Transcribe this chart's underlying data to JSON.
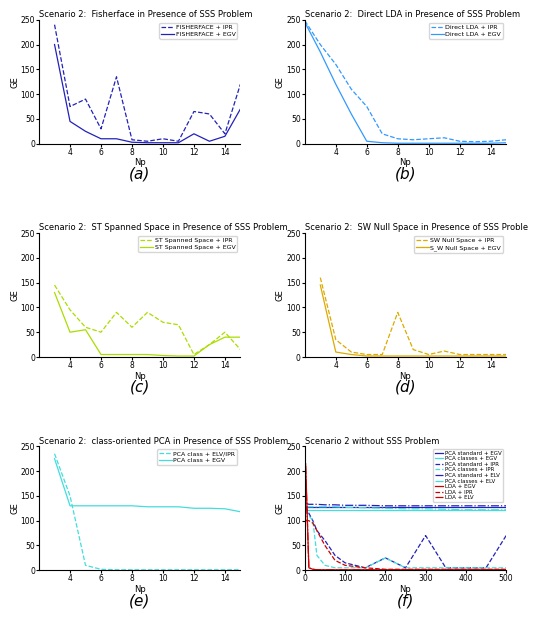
{
  "panel_a": {
    "title": "Scenario 2:  Fisherface in Presence of SSS Problem",
    "label1": "FISHERFACE + IPR",
    "label2": "FISHERFACE + EGV",
    "color": "#2222bb",
    "x": [
      3,
      4,
      5,
      6,
      7,
      8,
      9,
      10,
      11,
      12,
      13,
      14,
      15
    ],
    "y_ipr": [
      240,
      75,
      90,
      30,
      135,
      8,
      5,
      10,
      5,
      65,
      60,
      20,
      120
    ],
    "y_egv": [
      200,
      45,
      25,
      10,
      10,
      3,
      2,
      2,
      2,
      20,
      5,
      15,
      70
    ]
  },
  "panel_b": {
    "title": "Scenario 2:  Direct LDA in Presence of SSS Problem",
    "label1": "Direct LDA + IPR",
    "label2": "Direct LDA + EGV",
    "color": "#3399ff",
    "x": [
      2,
      3,
      4,
      5,
      6,
      7,
      8,
      9,
      10,
      11,
      12,
      13,
      14,
      15
    ],
    "y_ipr": [
      248,
      200,
      160,
      110,
      75,
      20,
      10,
      8,
      10,
      12,
      5,
      4,
      5,
      8
    ],
    "y_egv": [
      245,
      185,
      120,
      60,
      5,
      2,
      1,
      1,
      1,
      1,
      1,
      1,
      1,
      2
    ]
  },
  "panel_c": {
    "title": "Scenario 2:  ST Spanned Space in Presence of SSS Problem",
    "label1": "ST Spanned Space + IPR",
    "label2": "ST Spanned Space + EGV",
    "color": "#aadd00",
    "x": [
      3,
      4,
      5,
      6,
      7,
      8,
      9,
      10,
      11,
      12,
      13,
      14,
      15
    ],
    "y_ipr": [
      145,
      95,
      60,
      50,
      90,
      60,
      90,
      70,
      65,
      5,
      25,
      50,
      15
    ],
    "y_egv": [
      130,
      50,
      55,
      5,
      5,
      5,
      5,
      3,
      2,
      2,
      25,
      40,
      40
    ]
  },
  "panel_d": {
    "title": "Scenario 2:  SW Null Space in Presence of SSS Proble",
    "label1": "SW Null Space + IPR",
    "label2": "S_W Null Space + EGV",
    "color": "#ddaa00",
    "x": [
      3,
      4,
      5,
      6,
      7,
      8,
      9,
      10,
      11,
      12,
      13,
      14,
      15
    ],
    "y_ipr": [
      160,
      35,
      10,
      5,
      5,
      90,
      15,
      5,
      12,
      5,
      5,
      5,
      5
    ],
    "y_egv": [
      145,
      10,
      5,
      2,
      2,
      2,
      2,
      2,
      2,
      2,
      2,
      2,
      2
    ]
  },
  "panel_e": {
    "title": "Scenario 2:  class-oriented PCA in Presence of SSS Problem",
    "label1": "PCA class + ELV/IPR",
    "label2": "PCA class + EGV",
    "color_ipr": "#44dddd",
    "color_egv": "#44dddd",
    "x": [
      3,
      4,
      5,
      6,
      7,
      8,
      9,
      10,
      11,
      12,
      13,
      14,
      15
    ],
    "y_ipr": [
      235,
      150,
      10,
      2,
      1,
      1,
      1,
      1,
      1,
      1,
      1,
      1,
      1
    ],
    "y_egv": [
      225,
      130,
      130,
      130,
      130,
      130,
      128,
      128,
      128,
      125,
      125,
      124,
      118
    ]
  },
  "panel_f": {
    "title": "Scenario 2 without SSS Problem",
    "x": [
      2,
      10,
      20,
      30,
      50,
      75,
      100,
      150,
      200,
      250,
      300,
      350,
      400,
      450,
      500
    ],
    "series": {
      "PCA standard + EGV": {
        "color": "#2222bb",
        "style": "-",
        "y": [
          128,
          128,
          128,
          128,
          128,
          128,
          128,
          128,
          128,
          128,
          128,
          128,
          128,
          128,
          128
        ]
      },
      "PCA classes + EGV": {
        "color": "#44dddd",
        "style": "-",
        "y": [
          122,
          122,
          122,
          122,
          122,
          122,
          122,
          122,
          122,
          122,
          122,
          122,
          122,
          122,
          122
        ]
      },
      "PCA standard + IPR": {
        "color": "#2222bb",
        "style": "--",
        "y": [
          128,
          115,
          100,
          80,
          60,
          30,
          15,
          5,
          25,
          5,
          70,
          5,
          5,
          5,
          70
        ]
      },
      "PCA classes + IPR": {
        "color": "#44dddd",
        "style": "--",
        "y": [
          120,
          110,
          100,
          30,
          10,
          5,
          5,
          5,
          25,
          5,
          5,
          5,
          5,
          5,
          5
        ]
      },
      "PCA standard + ELV": {
        "color": "#2222bb",
        "style": "-.",
        "y": [
          135,
          133,
          133,
          133,
          132,
          132,
          131,
          131,
          130,
          130,
          130,
          130,
          130,
          130,
          130
        ]
      },
      "PCA classes + ELV": {
        "color": "#44dddd",
        "style": "-.",
        "y": [
          128,
          128,
          128,
          128,
          128,
          128,
          127,
          126,
          125,
          124,
          124,
          123,
          122,
          122,
          122
        ]
      },
      "LDA + EGV": {
        "color": "#cc0000",
        "style": "-",
        "y": [
          215,
          5,
          2,
          1,
          1,
          1,
          1,
          1,
          1,
          1,
          1,
          1,
          1,
          1,
          1
        ]
      },
      "LDA + IPR": {
        "color": "#cc0000",
        "style": "--",
        "y": [
          100,
          100,
          95,
          80,
          50,
          20,
          10,
          5,
          2,
          2,
          2,
          2,
          2,
          2,
          2
        ]
      },
      "LDA + ELV": {
        "color": "#cc0000",
        "style": "-.",
        "y": [
          210,
          5,
          2,
          1,
          1,
          1,
          1,
          1,
          1,
          1,
          1,
          1,
          1,
          1,
          1
        ]
      }
    }
  },
  "xlabel": "Np",
  "ylabel": "GE",
  "ylim": [
    0,
    250
  ],
  "bg_color": "#ffffff",
  "label_fontsize": 6,
  "title_fontsize": 6,
  "tick_fontsize": 5.5,
  "subfig_label_fontsize": 11,
  "legend_fontsize": 4.5
}
